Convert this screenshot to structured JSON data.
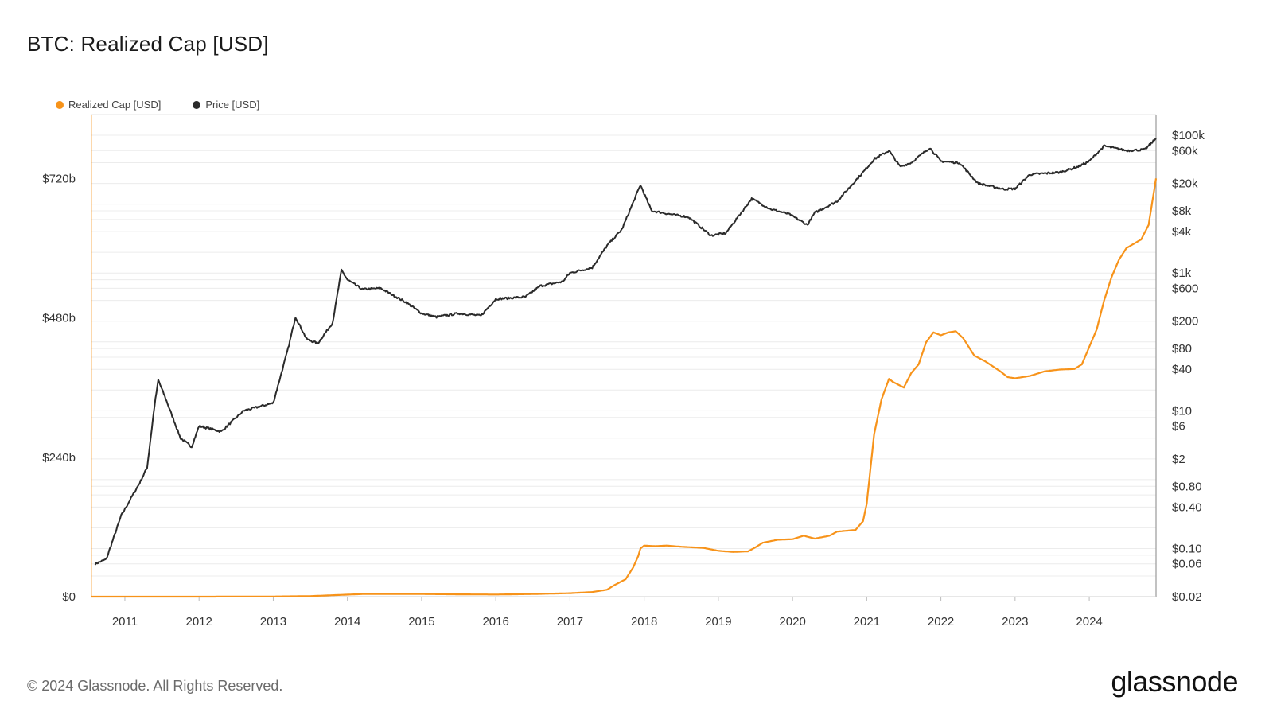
{
  "header": {
    "title": "BTC: Realized Cap [USD]"
  },
  "legend": [
    {
      "label": "Realized Cap [USD]",
      "color": "#f7931a"
    },
    {
      "label": "Price [USD]",
      "color": "#2b2b2b"
    }
  ],
  "footer": {
    "copyright": "© 2024 Glassnode. All Rights Reserved.",
    "brand": "glassnode"
  },
  "chart_data": {
    "type": "line",
    "title": "BTC: Realized Cap [USD]",
    "x_range": [
      2010.55,
      2024.9
    ],
    "x_ticks": [
      "2011",
      "2012",
      "2013",
      "2014",
      "2015",
      "2016",
      "2017",
      "2018",
      "2019",
      "2020",
      "2021",
      "2022",
      "2023",
      "2024"
    ],
    "y_left": {
      "label": "",
      "range": [
        0,
        830
      ],
      "ticks": [
        0,
        240,
        480,
        720
      ],
      "tick_labels": [
        "$0",
        "$240b",
        "$480b",
        "$720b"
      ]
    },
    "y_right": {
      "label": "",
      "scale": "log",
      "range": [
        0.02,
        200000
      ],
      "ticks": [
        0.02,
        0.06,
        0.1,
        0.4,
        0.8,
        2,
        6,
        10,
        40,
        80,
        200,
        600,
        1000,
        4000,
        8000,
        20000,
        60000,
        100000
      ],
      "tick_labels": [
        "$0.02",
        "$0.06",
        "$0.10",
        "$0.40",
        "$0.80",
        "$2",
        "$6",
        "$10",
        "$40",
        "$80",
        "$200",
        "$600",
        "$1k",
        "$4k",
        "$8k",
        "$20k",
        "$60k",
        "$100k"
      ]
    },
    "grid": true,
    "legend_position": "top-left",
    "series": [
      {
        "name": "Realized Cap [USD]",
        "axis": "left",
        "color": "#f7931a",
        "unit": "billion USD",
        "points": [
          [
            2010.55,
            0
          ],
          [
            2012.0,
            0
          ],
          [
            2013.0,
            0.3
          ],
          [
            2013.5,
            1
          ],
          [
            2013.9,
            3
          ],
          [
            2014.2,
            4.5
          ],
          [
            2015.0,
            4.5
          ],
          [
            2015.5,
            4
          ],
          [
            2016.0,
            3.7
          ],
          [
            2016.5,
            4.5
          ],
          [
            2017.0,
            6
          ],
          [
            2017.3,
            8
          ],
          [
            2017.5,
            12
          ],
          [
            2017.6,
            20
          ],
          [
            2017.75,
            30
          ],
          [
            2017.85,
            50
          ],
          [
            2017.92,
            70
          ],
          [
            2017.95,
            83
          ],
          [
            2018.0,
            88
          ],
          [
            2018.15,
            87
          ],
          [
            2018.3,
            88
          ],
          [
            2018.5,
            86
          ],
          [
            2018.8,
            84
          ],
          [
            2019.0,
            79
          ],
          [
            2019.2,
            77
          ],
          [
            2019.4,
            78
          ],
          [
            2019.5,
            85
          ],
          [
            2019.6,
            93
          ],
          [
            2019.8,
            98
          ],
          [
            2020.0,
            99
          ],
          [
            2020.15,
            105
          ],
          [
            2020.3,
            100
          ],
          [
            2020.5,
            105
          ],
          [
            2020.6,
            112
          ],
          [
            2020.85,
            115
          ],
          [
            2020.95,
            130
          ],
          [
            2021.0,
            160
          ],
          [
            2021.05,
            220
          ],
          [
            2021.1,
            280
          ],
          [
            2021.2,
            340
          ],
          [
            2021.3,
            375
          ],
          [
            2021.35,
            370
          ],
          [
            2021.5,
            360
          ],
          [
            2021.6,
            385
          ],
          [
            2021.7,
            400
          ],
          [
            2021.8,
            438
          ],
          [
            2021.9,
            455
          ],
          [
            2022.0,
            450
          ],
          [
            2022.1,
            455
          ],
          [
            2022.2,
            457
          ],
          [
            2022.3,
            445
          ],
          [
            2022.45,
            415
          ],
          [
            2022.6,
            405
          ],
          [
            2022.8,
            388
          ],
          [
            2022.9,
            378
          ],
          [
            2023.0,
            376
          ],
          [
            2023.2,
            380
          ],
          [
            2023.4,
            388
          ],
          [
            2023.6,
            391
          ],
          [
            2023.8,
            392
          ],
          [
            2023.9,
            400
          ],
          [
            2024.0,
            430
          ],
          [
            2024.1,
            460
          ],
          [
            2024.2,
            510
          ],
          [
            2024.3,
            550
          ],
          [
            2024.4,
            580
          ],
          [
            2024.5,
            600
          ],
          [
            2024.7,
            615
          ],
          [
            2024.8,
            640
          ],
          [
            2024.9,
            720
          ]
        ]
      },
      {
        "name": "Price [USD]",
        "axis": "right",
        "color": "#2b2b2b",
        "unit": "USD",
        "points": [
          [
            2010.6,
            0.06
          ],
          [
            2010.75,
            0.07
          ],
          [
            2010.95,
            0.3
          ],
          [
            2011.2,
            0.9
          ],
          [
            2011.3,
            1.5
          ],
          [
            2011.4,
            12
          ],
          [
            2011.45,
            28
          ],
          [
            2011.55,
            15
          ],
          [
            2011.75,
            4
          ],
          [
            2011.9,
            3
          ],
          [
            2012.0,
            6
          ],
          [
            2012.3,
            5
          ],
          [
            2012.6,
            10
          ],
          [
            2013.0,
            13
          ],
          [
            2013.2,
            80
          ],
          [
            2013.3,
            230
          ],
          [
            2013.45,
            110
          ],
          [
            2013.6,
            95
          ],
          [
            2013.8,
            190
          ],
          [
            2013.92,
            1100
          ],
          [
            2014.0,
            800
          ],
          [
            2014.2,
            580
          ],
          [
            2014.45,
            600
          ],
          [
            2014.8,
            370
          ],
          [
            2015.0,
            260
          ],
          [
            2015.2,
            230
          ],
          [
            2015.5,
            260
          ],
          [
            2015.8,
            240
          ],
          [
            2016.0,
            420
          ],
          [
            2016.4,
            450
          ],
          [
            2016.6,
            650
          ],
          [
            2016.9,
            750
          ],
          [
            2017.0,
            1000
          ],
          [
            2017.3,
            1200
          ],
          [
            2017.5,
            2500
          ],
          [
            2017.7,
            4300
          ],
          [
            2017.95,
            19000
          ],
          [
            2018.1,
            8000
          ],
          [
            2018.4,
            7000
          ],
          [
            2018.6,
            6500
          ],
          [
            2018.9,
            3500
          ],
          [
            2019.1,
            3800
          ],
          [
            2019.45,
            12000
          ],
          [
            2019.7,
            8500
          ],
          [
            2019.95,
            7200
          ],
          [
            2020.2,
            5000
          ],
          [
            2020.3,
            7500
          ],
          [
            2020.6,
            11000
          ],
          [
            2020.95,
            29000
          ],
          [
            2021.1,
            45000
          ],
          [
            2021.3,
            60000
          ],
          [
            2021.45,
            35000
          ],
          [
            2021.6,
            40000
          ],
          [
            2021.85,
            66000
          ],
          [
            2022.0,
            42000
          ],
          [
            2022.25,
            40000
          ],
          [
            2022.5,
            20000
          ],
          [
            2022.85,
            16500
          ],
          [
            2023.0,
            16800
          ],
          [
            2023.2,
            27000
          ],
          [
            2023.6,
            29000
          ],
          [
            2023.85,
            35000
          ],
          [
            2024.0,
            42000
          ],
          [
            2024.2,
            70000
          ],
          [
            2024.5,
            60000
          ],
          [
            2024.75,
            62000
          ],
          [
            2024.9,
            90000
          ]
        ]
      }
    ]
  }
}
